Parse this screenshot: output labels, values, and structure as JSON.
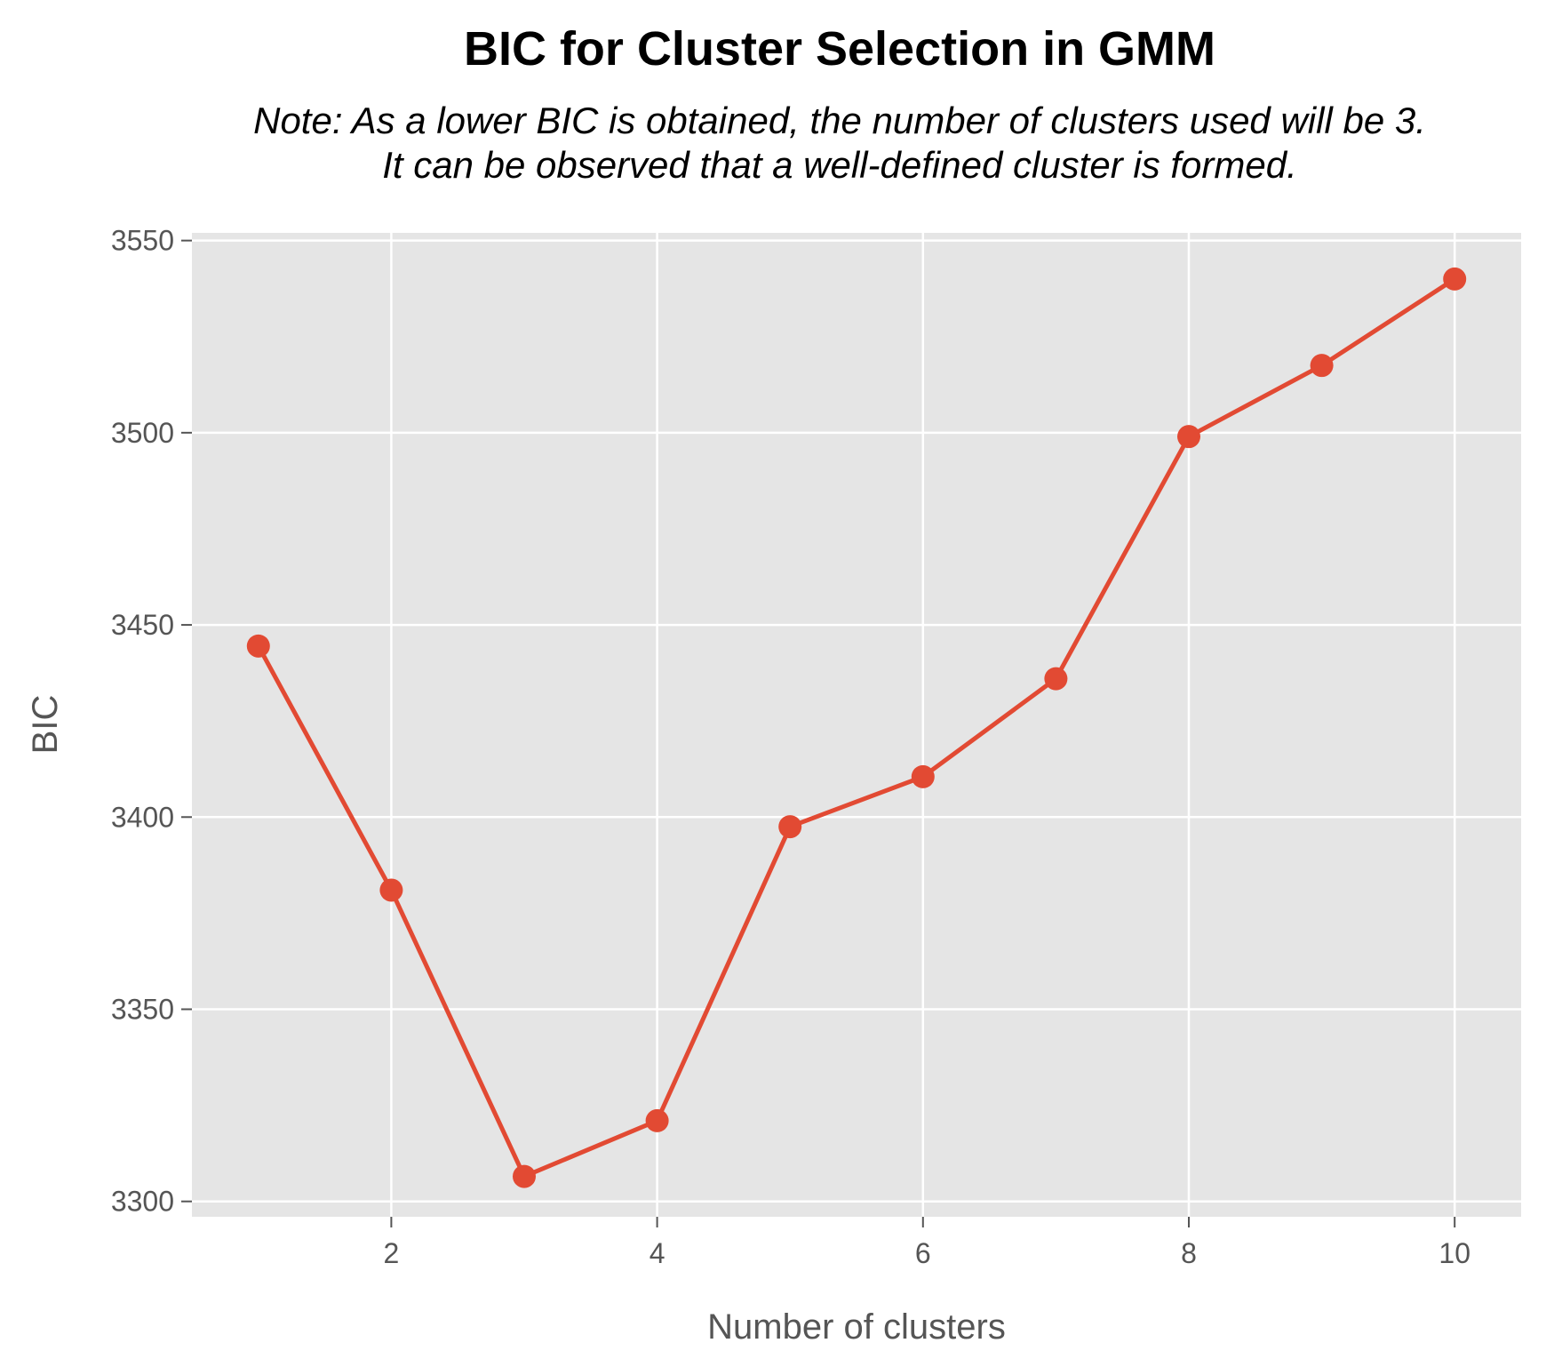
{
  "chart_data": {
    "type": "line",
    "title": "BIC for Cluster Selection in GMM",
    "subtitle_lines": [
      "Note: As a lower BIC is obtained, the number of clusters used will be 3.",
      "It can be observed that a well-defined cluster is formed."
    ],
    "xlabel": "Number of clusters",
    "ylabel": "BIC",
    "x": [
      1,
      2,
      3,
      4,
      5,
      6,
      7,
      8,
      9,
      10
    ],
    "series": [
      {
        "values": [
          3444.5,
          3381,
          3306.5,
          3321,
          3397.5,
          3410.5,
          3436,
          3499,
          3517.5,
          3540
        ]
      }
    ],
    "xlim": [
      0.5,
      10.5
    ],
    "ylim": [
      3296,
      3552
    ],
    "xticks": [
      2,
      4,
      6,
      8,
      10
    ],
    "xtick_labels": [
      "2",
      "4",
      "6",
      "8",
      "10"
    ],
    "yticks": [
      3300,
      3350,
      3400,
      3450,
      3500,
      3550
    ],
    "ytick_labels": [
      "3300",
      "3350",
      "3400",
      "3450",
      "3500",
      "3550"
    ],
    "grid": true,
    "marker": "circle",
    "colors": {
      "line": "#E24A33",
      "plot_bg": "#E5E5E5",
      "grid": "#FFFFFF",
      "tick": "#555555"
    }
  }
}
